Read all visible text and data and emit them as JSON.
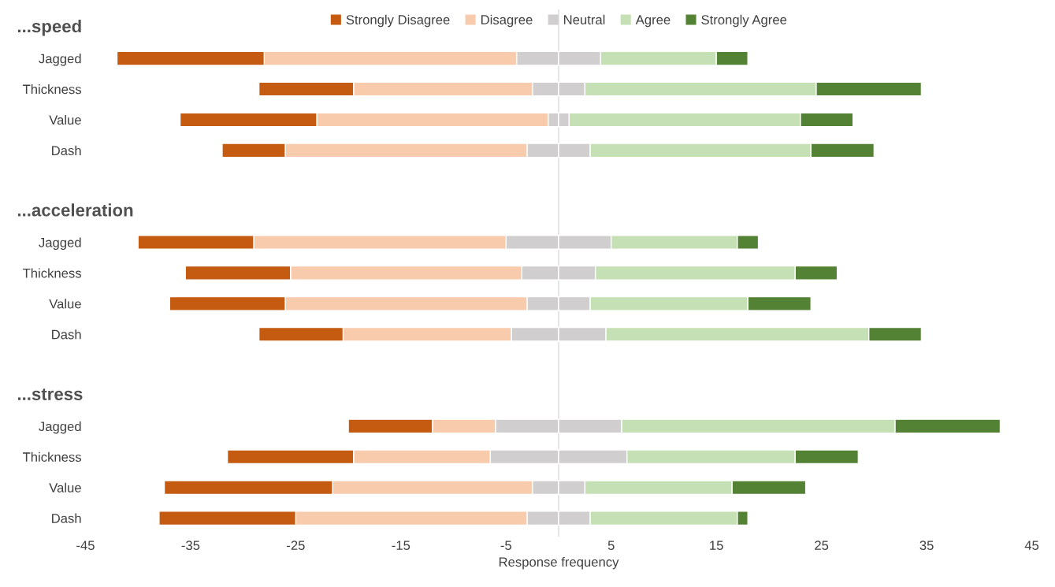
{
  "chart_data": {
    "type": "bar",
    "orientation": "horizontal",
    "stacked": true,
    "categories": [
      "...speed",
      "Jagged",
      "Thickness",
      "Value",
      "Dash",
      null,
      "...acceleration",
      "Jagged",
      "Thickness",
      "Value",
      "Dash",
      null,
      "...stress",
      "Jagged",
      "Thickness",
      "Value",
      "Dash"
    ],
    "series": [
      {
        "color": "#d0cece",
        "values": [
          null,
          -4,
          -2.5,
          -1,
          -3,
          null,
          null,
          -5,
          -3.5,
          -3,
          -4.5,
          null,
          null,
          -6,
          -6.5,
          -2.5,
          -3
        ]
      },
      {
        "name": "Disagree",
        "color": "#f8cbad",
        "values": [
          null,
          -24,
          -17,
          -22,
          -23,
          null,
          null,
          -24,
          -22,
          -23,
          -16,
          null,
          null,
          -6,
          -13,
          -19,
          -22
        ]
      },
      {
        "name": "Strongly Disagree",
        "color": "#c55a11",
        "values": [
          null,
          -14,
          -9,
          -13,
          -6,
          null,
          null,
          -11,
          -10,
          -11,
          -8,
          null,
          null,
          -8,
          -12,
          -16,
          -13
        ]
      },
      {
        "name": "Neutral",
        "color": "#d0cece",
        "values": [
          null,
          4,
          2.5,
          1,
          3,
          null,
          null,
          5,
          3.5,
          3,
          4.5,
          null,
          null,
          6,
          6.5,
          2.5,
          3
        ]
      },
      {
        "name": "Agree",
        "color": "#c5e0b4",
        "values": [
          null,
          11,
          22,
          22,
          21,
          null,
          null,
          12,
          19,
          15,
          25,
          null,
          null,
          26,
          16,
          14,
          14
        ]
      },
      {
        "name": "Strongly Agree",
        "color": "#548235",
        "values": [
          null,
          3,
          10,
          5,
          6,
          null,
          null,
          2,
          4,
          6,
          5,
          null,
          null,
          10,
          6,
          7,
          1
        ]
      }
    ],
    "xlabel": "Response frequency",
    "xlim": [
      -45,
      45
    ],
    "xticks": [
      -45,
      -35,
      -25,
      -15,
      -5,
      5,
      15,
      25,
      35,
      45
    ],
    "ref_lines": [
      {
        "axis": "x",
        "value": 0,
        "color": "#e0e0e0"
      }
    ],
    "legend": "top",
    "grid": false
  }
}
